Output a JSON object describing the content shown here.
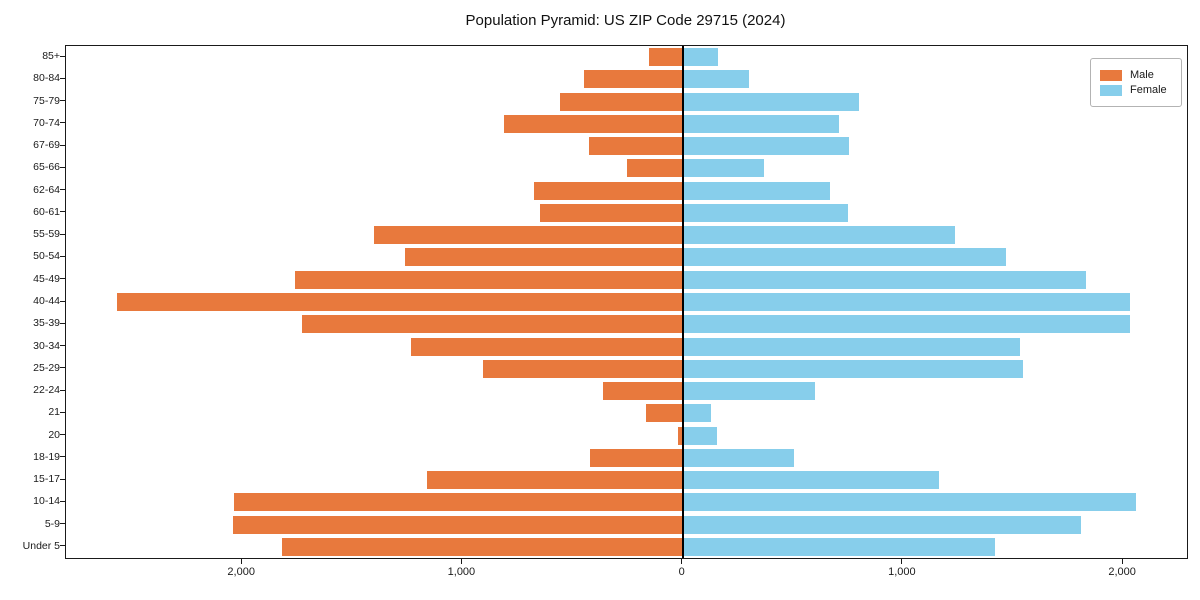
{
  "title": "Population Pyramid: US ZIP Code 29715 (2024)",
  "colors": {
    "male": "#E8793D",
    "female": "#87CEEB",
    "zero_line": "#000000",
    "spine": "#1a1a1a"
  },
  "legend": {
    "male_label": "Male",
    "female_label": "Female"
  },
  "chart_data": {
    "type": "bar",
    "orientation": "horizontal",
    "title": "Population Pyramid: US ZIP Code 29715 (2024)",
    "xlabel": "",
    "ylabel": "",
    "grid": false,
    "legend_position": "upper right",
    "xlim": [
      -2800,
      2290
    ],
    "x_ticks": [
      -2000,
      -1000,
      0,
      1000,
      2000
    ],
    "x_tick_labels": [
      "2,000",
      "1,000",
      "0",
      "1,000",
      "2,000"
    ],
    "categories": [
      "85+",
      "80-84",
      "75-79",
      "70-74",
      "67-69",
      "65-66",
      "62-64",
      "60-61",
      "55-59",
      "50-54",
      "45-49",
      "40-44",
      "35-39",
      "30-34",
      "25-29",
      "22-24",
      "21",
      "20",
      "18-19",
      "15-17",
      "10-14",
      "5-9",
      "Under 5"
    ],
    "series": [
      {
        "name": "Male",
        "color": "#E8793D",
        "values": [
          -155,
          -450,
          -555,
          -810,
          -425,
          -255,
          -675,
          -650,
          -1400,
          -1260,
          -1760,
          -2570,
          -1730,
          -1235,
          -905,
          -360,
          -165,
          -20,
          -420,
          -1160,
          -2035,
          -2040,
          -1820
        ]
      },
      {
        "name": "Female",
        "color": "#87CEEB",
        "values": [
          160,
          300,
          800,
          710,
          755,
          370,
          670,
          750,
          1235,
          1470,
          1830,
          2030,
          2030,
          1530,
          1545,
          600,
          130,
          155,
          505,
          1165,
          2060,
          1810,
          1420
        ]
      }
    ]
  }
}
